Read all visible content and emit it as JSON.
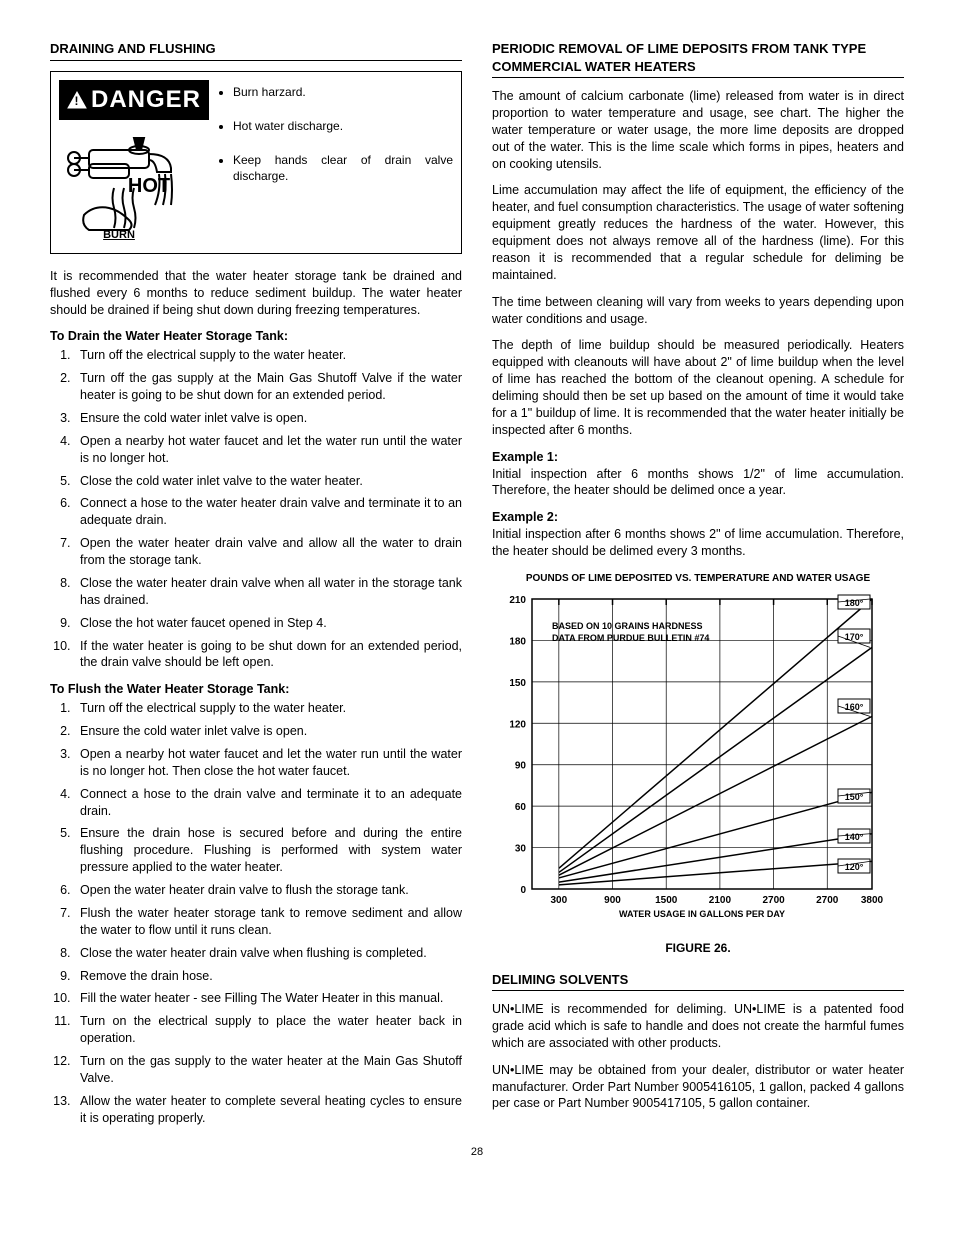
{
  "left": {
    "heading": "DRAINING AND FLUSHING",
    "danger": {
      "label": "DANGER",
      "hot": "HOT",
      "burn": "BURN",
      "bullets": [
        "Burn harzard.",
        "Hot water discharge.",
        "Keep hands clear of drain valve discharge."
      ]
    },
    "intro": "It is recommended that the water heater storage tank be drained and flushed every 6 months to reduce sediment buildup. The water heater should be drained if being shut down during freezing temperatures.",
    "drain_heading": "To Drain the Water Heater Storage Tank:",
    "drain_steps": [
      "Turn off the electrical supply to the water heater.",
      "Turn off the gas supply at the Main Gas Shutoff Valve if the water heater is going to be shut down for an extended period.",
      "Ensure the cold water inlet valve is open.",
      "Open a nearby hot water faucet and let the water run until the water is no longer hot.",
      "Close the cold water inlet valve to the water heater.",
      "Connect a hose to the water heater drain valve and terminate it to an adequate drain.",
      "Open the water heater drain valve and allow all the water to drain from the storage tank.",
      "Close the water heater drain valve when all water in the storage tank has drained.",
      "Close the hot water faucet opened in Step 4.",
      "If the water heater is going to be shut down for an extended period, the drain valve should be left open."
    ],
    "flush_heading": "To Flush the Water Heater Storage Tank:",
    "flush_steps": [
      "Turn off the electrical supply to the water heater.",
      "Ensure the cold water inlet valve is open.",
      "Open a nearby hot water faucet and let the water run until the water is no longer hot. Then close the hot water faucet.",
      "Connect a hose to the drain valve and terminate it to an adequate drain.",
      "Ensure the drain hose is secured before and during the entire flushing procedure. Flushing is performed with system water pressure applied to the water heater.",
      "Open the water heater drain valve to flush the storage tank.",
      "Flush the water heater storage tank to remove sediment and allow the water to flow until it runs clean.",
      "Close the water heater drain valve when flushing is completed.",
      "Remove the drain hose.",
      "Fill the water heater - see Filling The Water Heater in this manual.",
      "Turn on the electrical supply to place the water heater back in operation.",
      "Turn on the gas supply to the water heater at the Main Gas Shutoff Valve.",
      "Allow the water heater to complete several heating cycles to ensure it is operating properly."
    ]
  },
  "right": {
    "heading": "PERIODIC REMOVAL OF LIME DEPOSITS FROM TANK TYPE COMMERCIAL WATER HEATERS",
    "p1": "The amount of calcium carbonate (lime) released from water is in direct proportion to water temperature and usage, see chart. The higher the water temperature or water usage, the more lime deposits are dropped out of the water. This is the lime scale which forms in pipes, heaters and on cooking utensils.",
    "p2": "Lime accumulation may affect the life of equipment, the efficiency of the heater, and fuel consumption characteristics. The usage of water softening equipment greatly reduces the hardness of the water. However, this equipment does not always remove all of the hardness (lime). For this reason it is recommended that a regular schedule for deliming be maintained.",
    "p3": "The time between cleaning will vary from weeks to years depending upon water conditions and usage.",
    "p4": "The depth of lime buildup should be measured periodically. Heaters equipped with cleanouts will have about 2\" of lime buildup when the level of lime has reached the bottom of the cleanout opening. A schedule for deliming should then be set up based on the amount of time it would take for a 1\" buildup of lime. It is recommended that the water heater initially be inspected after 6 months.",
    "ex1_label": "Example 1:",
    "ex1_text": "Initial inspection after 6 months shows 1/2\" of lime accumulation. Therefore, the heater should be delimed once a year.",
    "ex2_label": "Example 2:",
    "ex2_text": "Initial inspection after 6 months shows 2\" of lime accumulation. Therefore, the heater should be delimed every 3 months.",
    "chart": {
      "title": "POUNDS OF LIME DEPOSITED VS. TEMPERATURE AND WATER USAGE",
      "note1": "BASED ON 10 GRAINS HARDNESS",
      "note2": "DATA FROM PURDUE BULLETIN #74",
      "y_ticks": [
        0,
        30,
        60,
        90,
        120,
        150,
        180,
        210
      ],
      "x_ticks": [
        300,
        900,
        1500,
        2100,
        2700,
        2700,
        3800
      ],
      "x_label": "WATER USAGE IN GALLONS PER DAY",
      "line_labels": [
        "180°",
        "170°",
        "160°",
        "150°",
        "140°",
        "120°"
      ],
      "series": {
        "180": {
          "x": [
            300,
            3800
          ],
          "y": [
            15,
            210
          ]
        },
        "170": {
          "x": [
            300,
            3800
          ],
          "y": [
            12,
            175
          ]
        },
        "160": {
          "x": [
            300,
            3800
          ],
          "y": [
            10,
            125
          ]
        },
        "150": {
          "x": [
            300,
            3800
          ],
          "y": [
            8,
            70
          ]
        },
        "140": {
          "x": [
            300,
            3800
          ],
          "y": [
            5,
            40
          ]
        },
        "120": {
          "x": [
            300,
            3800
          ],
          "y": [
            3,
            20
          ]
        }
      },
      "ylim": [
        0,
        210
      ],
      "xlim": [
        0,
        3800
      ],
      "line_color": "#000000",
      "grid_color": "#000000",
      "background_color": "#ffffff",
      "axis_font_size": 10
    },
    "figure_label": "FIGURE 26.",
    "deliming_heading": "DELIMING SOLVENTS",
    "deliming_p1": "UN•LIME is recommended for deliming. UN•LIME is a patented food grade acid which is safe to handle and does not create the harmful fumes which are associated with other products.",
    "deliming_p2": "UN•LIME may be obtained from your dealer, distributor or water heater manufacturer. Order Part Number 9005416105, 1 gallon, packed 4 gallons per case or Part Number 9005417105, 5 gallon container."
  },
  "page_number": "28"
}
